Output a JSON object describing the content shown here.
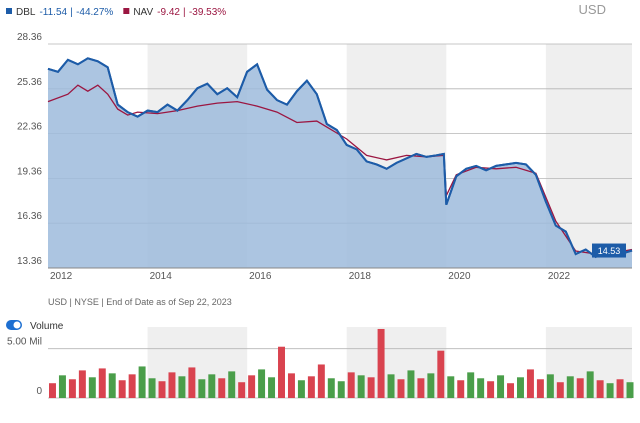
{
  "chart_data": [
    {
      "type": "line",
      "currency": "USD",
      "note": "USD | NYSE | End of Date as of Sep 22, 2023",
      "xlim": [
        2012,
        2023.73
      ],
      "xticks": [
        2012,
        2014,
        2016,
        2018,
        2020,
        2022
      ],
      "ylim": [
        13.36,
        28.36
      ],
      "yticks": [
        13.36,
        16.36,
        19.36,
        22.36,
        25.36,
        28.36
      ],
      "grid": true,
      "last_value_label": true,
      "series": [
        {
          "name": "DBL",
          "change": -11.54,
          "change_pct": "-44.27%",
          "color": "#1d5ca8",
          "fill": "#9dbbdc",
          "x": [
            2012.0,
            2012.2,
            2012.4,
            2012.6,
            2012.8,
            2013.0,
            2013.2,
            2013.4,
            2013.6,
            2013.8,
            2014.0,
            2014.2,
            2014.4,
            2014.6,
            2014.8,
            2015.0,
            2015.2,
            2015.4,
            2015.6,
            2015.8,
            2016.0,
            2016.2,
            2016.4,
            2016.6,
            2016.8,
            2017.0,
            2017.2,
            2017.4,
            2017.6,
            2017.8,
            2018.0,
            2018.2,
            2018.4,
            2018.6,
            2018.8,
            2019.0,
            2019.2,
            2019.4,
            2019.6,
            2019.8,
            2019.95,
            2020.0,
            2020.2,
            2020.4,
            2020.6,
            2020.8,
            2021.0,
            2021.2,
            2021.4,
            2021.6,
            2021.8,
            2022.0,
            2022.2,
            2022.4,
            2022.6,
            2022.8,
            2023.0,
            2023.2,
            2023.4,
            2023.73
          ],
          "values": [
            26.7,
            26.5,
            27.3,
            27.0,
            27.4,
            27.2,
            26.8,
            24.3,
            23.8,
            23.5,
            23.9,
            23.8,
            24.3,
            23.9,
            24.6,
            25.4,
            25.7,
            25.0,
            25.4,
            24.8,
            26.5,
            27.0,
            25.3,
            24.6,
            24.3,
            25.2,
            25.9,
            25.0,
            23.0,
            22.6,
            21.6,
            21.3,
            20.5,
            20.3,
            20.0,
            20.4,
            20.7,
            21.0,
            20.8,
            20.9,
            21.0,
            17.6,
            19.5,
            20.0,
            20.2,
            19.9,
            20.2,
            20.3,
            20.4,
            20.3,
            19.6,
            17.8,
            16.2,
            15.8,
            14.3,
            14.6,
            14.1,
            14.6,
            14.2,
            14.53
          ]
        },
        {
          "name": "NAV",
          "change": -9.42,
          "change_pct": "-39.53%",
          "color": "#9b1641",
          "x": [
            2012.0,
            2012.4,
            2012.6,
            2012.8,
            2013.0,
            2013.2,
            2013.4,
            2013.6,
            2013.8,
            2014.2,
            2014.6,
            2015.0,
            2015.4,
            2015.8,
            2016.2,
            2016.6,
            2017.0,
            2017.4,
            2017.8,
            2018.0,
            2018.4,
            2018.8,
            2019.2,
            2019.6,
            2019.95,
            2020.0,
            2020.2,
            2020.6,
            2021.0,
            2021.4,
            2021.8,
            2022.2,
            2022.6,
            2023.0,
            2023.4,
            2023.73
          ],
          "values": [
            24.5,
            25.0,
            25.6,
            25.2,
            25.6,
            25.0,
            24.0,
            23.6,
            23.8,
            23.7,
            23.9,
            24.2,
            24.4,
            24.5,
            24.2,
            23.8,
            23.1,
            23.2,
            22.4,
            22.0,
            20.9,
            20.6,
            20.9,
            20.8,
            20.9,
            18.2,
            19.6,
            20.1,
            20.0,
            20.1,
            19.7,
            16.5,
            14.5,
            14.3,
            14.4,
            14.6
          ]
        }
      ]
    },
    {
      "type": "bar",
      "title": "Volume",
      "xlim": [
        2012,
        2023.73
      ],
      "xticks": [
        2012,
        2014,
        2016,
        2018,
        2020,
        2022
      ],
      "ylim": [
        0,
        7.2
      ],
      "yticks": [
        0,
        {
          "value": 5,
          "label": "5.00 Mil"
        }
      ],
      "x": [
        2012.0,
        2012.2,
        2012.4,
        2012.6,
        2012.8,
        2013.0,
        2013.2,
        2013.4,
        2013.6,
        2013.8,
        2014.0,
        2014.2,
        2014.4,
        2014.6,
        2014.8,
        2015.0,
        2015.2,
        2015.4,
        2015.6,
        2015.8,
        2016.0,
        2016.2,
        2016.4,
        2016.6,
        2016.8,
        2017.0,
        2017.2,
        2017.4,
        2017.6,
        2017.8,
        2018.0,
        2018.2,
        2018.4,
        2018.6,
        2018.8,
        2019.0,
        2019.2,
        2019.4,
        2019.6,
        2019.8,
        2020.0,
        2020.2,
        2020.4,
        2020.6,
        2020.8,
        2021.0,
        2021.2,
        2021.4,
        2021.6,
        2021.8,
        2022.0,
        2022.2,
        2022.4,
        2022.6,
        2022.8,
        2023.0,
        2023.2,
        2023.4,
        2023.6
      ],
      "values": [
        1.5,
        2.3,
        1.9,
        2.8,
        2.1,
        3.0,
        2.5,
        1.8,
        2.4,
        3.2,
        2.0,
        1.7,
        2.6,
        2.2,
        3.1,
        1.9,
        2.4,
        2.0,
        2.7,
        1.6,
        2.3,
        2.9,
        2.1,
        5.2,
        2.5,
        1.8,
        2.2,
        3.4,
        2.0,
        1.7,
        2.6,
        2.3,
        2.1,
        7.0,
        2.4,
        1.9,
        2.8,
        2.0,
        2.5,
        4.8,
        2.2,
        1.8,
        2.6,
        2.0,
        1.7,
        2.3,
        1.5,
        2.1,
        2.9,
        1.9,
        2.4,
        1.6,
        2.2,
        2.0,
        2.7,
        1.8,
        1.5,
        1.9,
        1.6
      ],
      "colors": [
        "#d9434f",
        "#4a9e4a",
        "#d9434f",
        "#d9434f",
        "#4a9e4a",
        "#d9434f",
        "#4a9e4a",
        "#d9434f",
        "#d9434f",
        "#4a9e4a",
        "#4a9e4a",
        "#d9434f",
        "#d9434f",
        "#4a9e4a",
        "#d9434f",
        "#4a9e4a",
        "#4a9e4a",
        "#d9434f",
        "#4a9e4a",
        "#d9434f",
        "#d9434f",
        "#4a9e4a",
        "#4a9e4a",
        "#d9434f",
        "#d9434f",
        "#4a9e4a",
        "#d9434f",
        "#d9434f",
        "#4a9e4a",
        "#4a9e4a",
        "#d9434f",
        "#4a9e4a",
        "#d9434f",
        "#d9434f",
        "#4a9e4a",
        "#d9434f",
        "#4a9e4a",
        "#d9434f",
        "#4a9e4a",
        "#d9434f",
        "#4a9e4a",
        "#d9434f",
        "#4a9e4a",
        "#4a9e4a",
        "#d9434f",
        "#4a9e4a",
        "#d9434f",
        "#4a9e4a",
        "#d9434f",
        "#d9434f",
        "#4a9e4a",
        "#d9434f",
        "#4a9e4a",
        "#d9434f",
        "#4a9e4a",
        "#d9434f",
        "#4a9e4a",
        "#d9434f",
        "#4a9e4a"
      ]
    }
  ]
}
